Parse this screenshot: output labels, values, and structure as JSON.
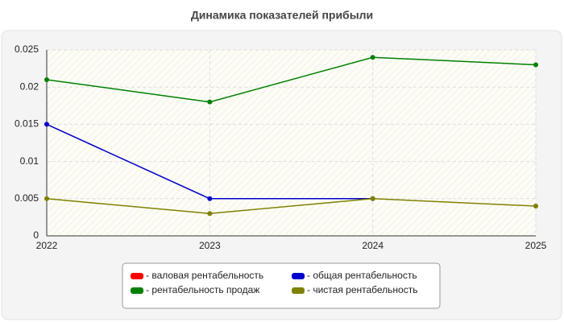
{
  "chart_data": {
    "type": "line",
    "title": "Динамика показателей прибыли",
    "categories": [
      "2022",
      "2023",
      "2024",
      "2025"
    ],
    "series": [
      {
        "name": "- валовая рентабельность",
        "color": "#ff0000",
        "values": [
          null,
          null,
          null,
          null
        ]
      },
      {
        "name": "- общая рентабельность",
        "color": "#0000cc",
        "values": [
          0.015,
          0.005,
          0.005,
          null
        ]
      },
      {
        "name": "- рентабельность продаж",
        "color": "#008000",
        "values": [
          0.021,
          0.018,
          0.024,
          0.023
        ]
      },
      {
        "name": "- чистая рентабельность",
        "color": "#808000",
        "values": [
          0.005,
          0.003,
          0.005,
          0.004
        ]
      }
    ],
    "ylim": [
      0,
      0.025
    ],
    "yticks": [
      0,
      0.005,
      0.01,
      0.015,
      0.02,
      0.025
    ],
    "grid": true
  }
}
